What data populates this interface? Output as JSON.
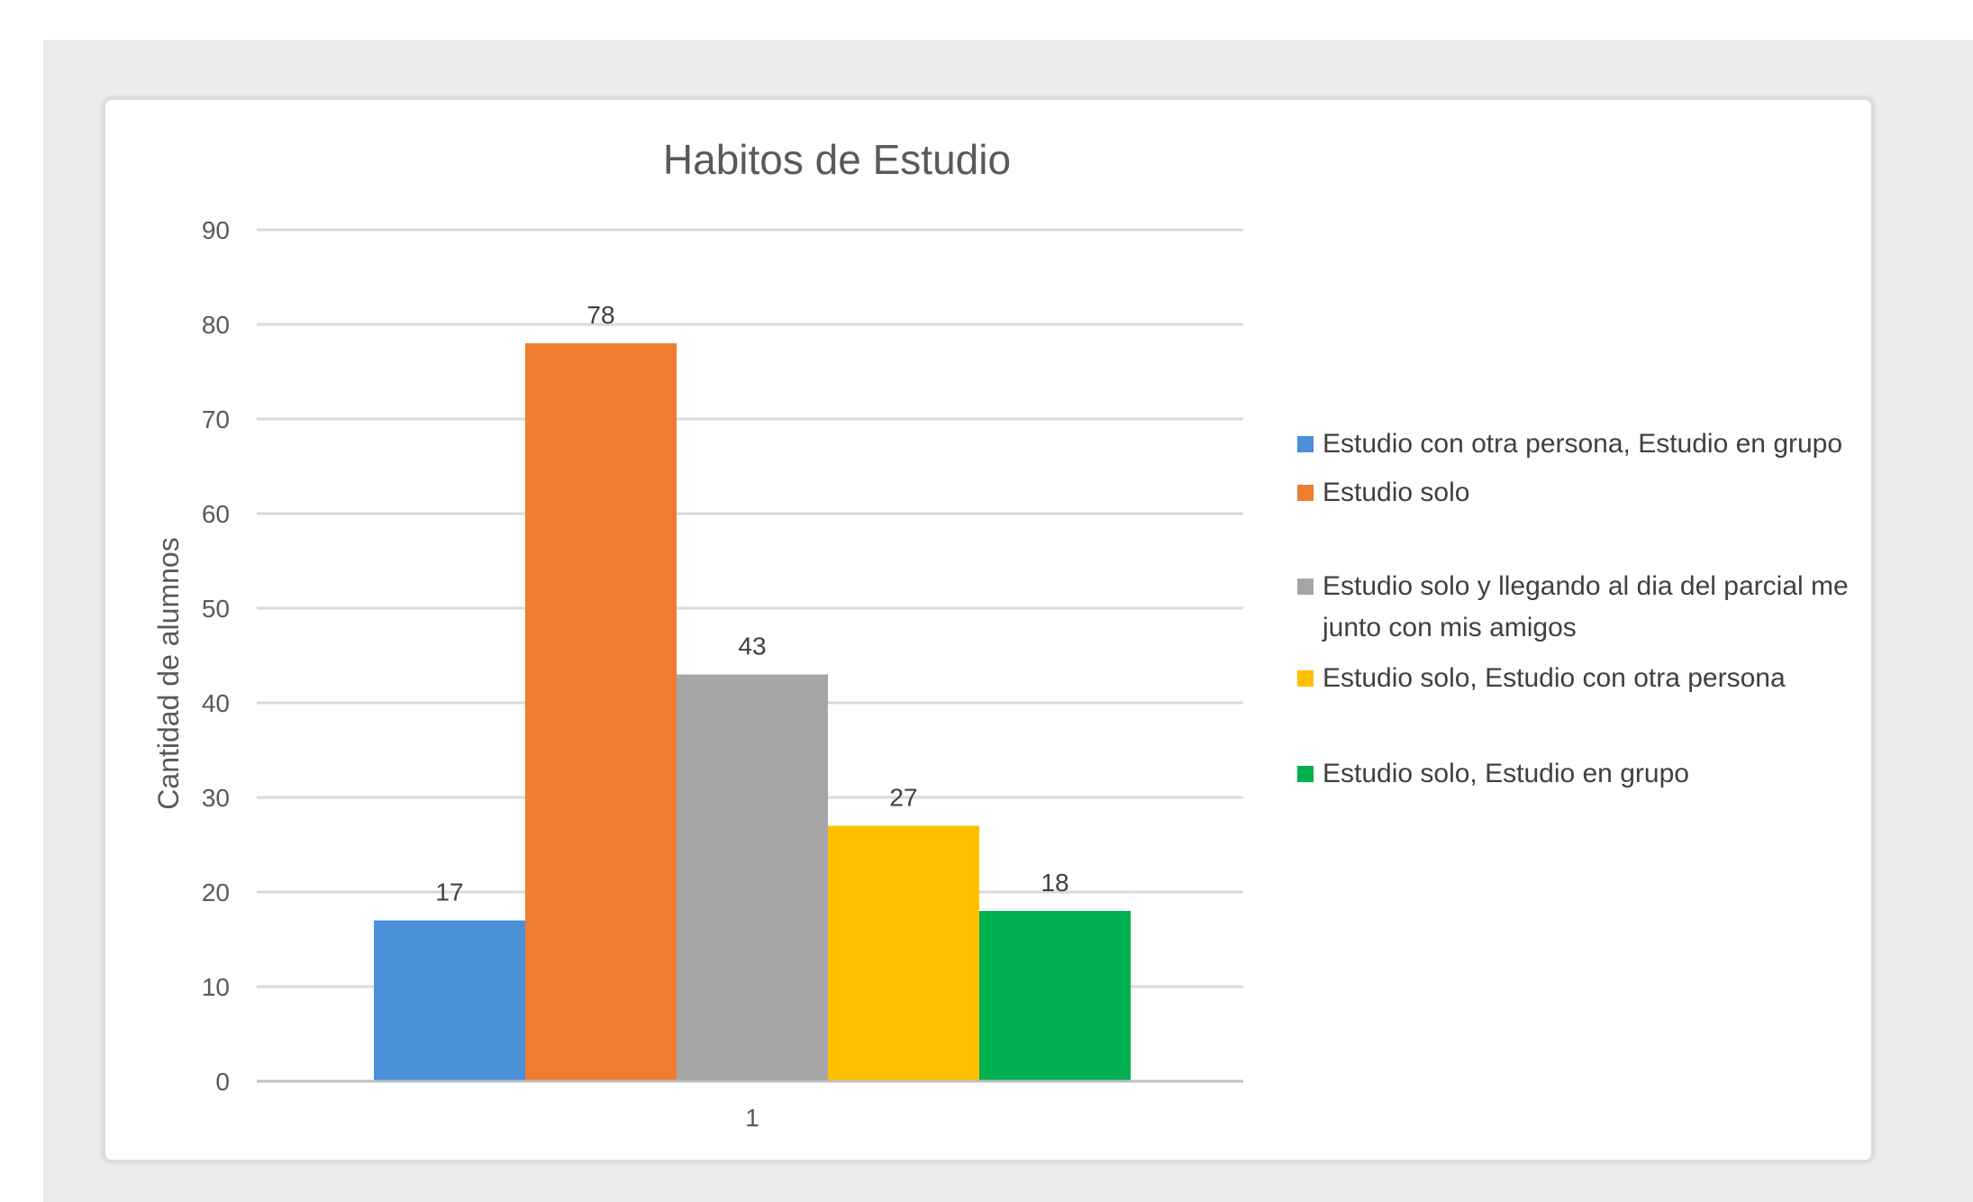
{
  "chart_data": {
    "type": "bar",
    "title": "Habitos de Estudio",
    "ylabel": "Cantidad de alumnos",
    "xlabel": "",
    "categories": [
      "1"
    ],
    "ylim": [
      0,
      90
    ],
    "yticks": [
      0,
      10,
      20,
      30,
      40,
      50,
      60,
      70,
      80,
      90
    ],
    "grid": true,
    "legend_position": "right",
    "series": [
      {
        "name": "Estudio con otra persona, Estudio en grupo",
        "values": [
          17
        ],
        "color": "#4a90d9"
      },
      {
        "name": "Estudio solo",
        "values": [
          78
        ],
        "color": "#ed7d31"
      },
      {
        "name": "Estudio solo y llegando al dia del parcial me junto con mis amigos",
        "values": [
          43
        ],
        "color": "#a5a5a5"
      },
      {
        "name": "Estudio solo, Estudio con otra persona",
        "values": [
          27
        ],
        "color": "#ffc000"
      },
      {
        "name": "Estudio solo, Estudio en grupo",
        "values": [
          18
        ],
        "color": "#00b050"
      }
    ]
  }
}
